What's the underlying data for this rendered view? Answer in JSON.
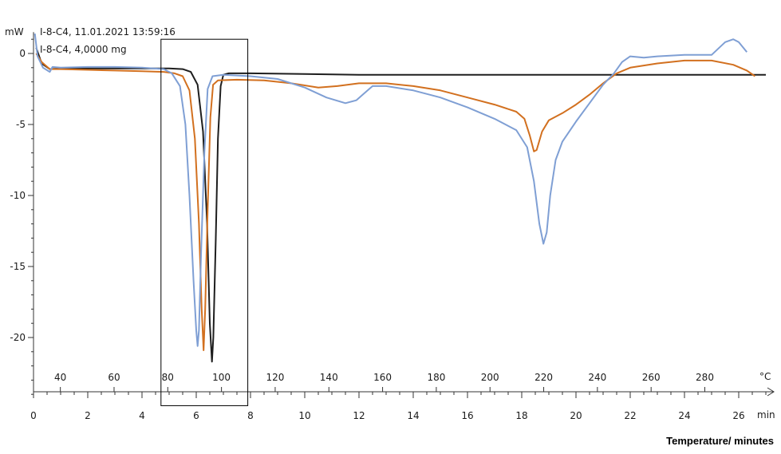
{
  "chart_data": {
    "type": "line",
    "title": "",
    "header_lines": [
      "I-8-C4, 11.01.2021 13:59:16",
      "I-8-C4, 4,0000 mg"
    ],
    "ylabel": "mW",
    "xlabel": "Temperature/ minutes",
    "ylim": [
      -24,
      1.5
    ],
    "xlim_min": [
      0,
      27
    ],
    "xlim_temp": [
      30,
      300
    ],
    "yticks": [
      0,
      -5,
      -10,
      -15,
      -20
    ],
    "yticks_minor_step": 1,
    "temp_ticks": [
      40,
      60,
      80,
      100,
      120,
      140,
      160,
      180,
      200,
      220,
      240,
      260,
      280
    ],
    "temp_unit": "°C",
    "min_ticks": [
      0,
      2,
      4,
      6,
      8,
      10,
      12,
      14,
      16,
      18,
      20,
      22,
      24,
      26
    ],
    "min_unit": "min",
    "grid": false,
    "highlight_box": {
      "x0": 4.7,
      "x1": 7.9,
      "y0": 1.0,
      "y1": -24.8
    },
    "series": [
      {
        "color": "#1e1e1e",
        "points": [
          [
            0.1,
            0.4
          ],
          [
            0.3,
            -0.7
          ],
          [
            0.6,
            -1.1
          ],
          [
            1,
            -1.05
          ],
          [
            2,
            -1.05
          ],
          [
            3,
            -1.05
          ],
          [
            4,
            -1.05
          ],
          [
            5,
            -1.05
          ],
          [
            5.5,
            -1.1
          ],
          [
            5.8,
            -1.3
          ],
          [
            6.05,
            -2.2
          ],
          [
            6.25,
            -5.5
          ],
          [
            6.4,
            -12
          ],
          [
            6.5,
            -19
          ],
          [
            6.58,
            -21.7
          ],
          [
            6.63,
            -20
          ],
          [
            6.72,
            -13
          ],
          [
            6.8,
            -6
          ],
          [
            6.9,
            -2.3
          ],
          [
            7.0,
            -1.5
          ],
          [
            7.2,
            -1.4
          ],
          [
            8,
            -1.4
          ],
          [
            10,
            -1.45
          ],
          [
            12,
            -1.5
          ],
          [
            14,
            -1.5
          ],
          [
            16,
            -1.5
          ],
          [
            18,
            -1.5
          ],
          [
            20,
            -1.5
          ],
          [
            22,
            -1.5
          ],
          [
            24,
            -1.5
          ],
          [
            26,
            -1.5
          ],
          [
            27,
            -1.5
          ]
        ]
      },
      {
        "color": "#d2701f",
        "points": [
          [
            0.1,
            0.0
          ],
          [
            0.3,
            -0.6
          ],
          [
            0.6,
            -1.1
          ],
          [
            1,
            -1.1
          ],
          [
            2,
            -1.15
          ],
          [
            3,
            -1.2
          ],
          [
            4,
            -1.25
          ],
          [
            4.8,
            -1.3
          ],
          [
            5.2,
            -1.4
          ],
          [
            5.5,
            -1.6
          ],
          [
            5.75,
            -2.6
          ],
          [
            5.95,
            -6
          ],
          [
            6.1,
            -12
          ],
          [
            6.2,
            -18
          ],
          [
            6.27,
            -20.9
          ],
          [
            6.33,
            -18
          ],
          [
            6.42,
            -11
          ],
          [
            6.52,
            -4.5
          ],
          [
            6.62,
            -2.2
          ],
          [
            6.8,
            -1.9
          ],
          [
            7.5,
            -1.85
          ],
          [
            8.5,
            -1.9
          ],
          [
            9.5,
            -2.1
          ],
          [
            10.5,
            -2.4
          ],
          [
            11.2,
            -2.3
          ],
          [
            12,
            -2.1
          ],
          [
            13,
            -2.1
          ],
          [
            14,
            -2.3
          ],
          [
            15,
            -2.6
          ],
          [
            16,
            -3.1
          ],
          [
            17,
            -3.6
          ],
          [
            17.8,
            -4.1
          ],
          [
            18.1,
            -4.6
          ],
          [
            18.3,
            -5.8
          ],
          [
            18.45,
            -6.9
          ],
          [
            18.55,
            -6.8
          ],
          [
            18.75,
            -5.5
          ],
          [
            19,
            -4.7
          ],
          [
            19.5,
            -4.2
          ],
          [
            20,
            -3.6
          ],
          [
            20.5,
            -2.9
          ],
          [
            21,
            -2.1
          ],
          [
            21.5,
            -1.4
          ],
          [
            22,
            -1.0
          ],
          [
            23,
            -0.7
          ],
          [
            24,
            -0.5
          ],
          [
            25,
            -0.5
          ],
          [
            25.8,
            -0.8
          ],
          [
            26.3,
            -1.2
          ],
          [
            26.6,
            -1.6
          ]
        ]
      },
      {
        "color": "#7f9fd4",
        "points": [
          [
            0.05,
            1.4
          ],
          [
            0.15,
            -0.2
          ],
          [
            0.35,
            -1.0
          ],
          [
            0.6,
            -1.3
          ],
          [
            0.7,
            -0.95
          ],
          [
            1,
            -1.0
          ],
          [
            2,
            -0.95
          ],
          [
            3,
            -0.95
          ],
          [
            4,
            -1.0
          ],
          [
            4.8,
            -1.1
          ],
          [
            5.1,
            -1.4
          ],
          [
            5.4,
            -2.3
          ],
          [
            5.6,
            -5
          ],
          [
            5.75,
            -10
          ],
          [
            5.9,
            -16
          ],
          [
            6.0,
            -19.5
          ],
          [
            6.05,
            -20.6
          ],
          [
            6.1,
            -19.5
          ],
          [
            6.18,
            -14
          ],
          [
            6.3,
            -7
          ],
          [
            6.42,
            -2.5
          ],
          [
            6.6,
            -1.6
          ],
          [
            7,
            -1.5
          ],
          [
            8,
            -1.6
          ],
          [
            9,
            -1.8
          ],
          [
            10,
            -2.4
          ],
          [
            10.8,
            -3.1
          ],
          [
            11.5,
            -3.5
          ],
          [
            11.9,
            -3.3
          ],
          [
            12.2,
            -2.8
          ],
          [
            12.5,
            -2.3
          ],
          [
            13,
            -2.3
          ],
          [
            14,
            -2.6
          ],
          [
            15,
            -3.1
          ],
          [
            16,
            -3.8
          ],
          [
            17,
            -4.6
          ],
          [
            17.8,
            -5.4
          ],
          [
            18.2,
            -6.6
          ],
          [
            18.45,
            -9
          ],
          [
            18.65,
            -12
          ],
          [
            18.8,
            -13.4
          ],
          [
            18.92,
            -12.6
          ],
          [
            19.05,
            -10
          ],
          [
            19.25,
            -7.5
          ],
          [
            19.5,
            -6.2
          ],
          [
            20,
            -4.8
          ],
          [
            20.5,
            -3.5
          ],
          [
            21,
            -2.2
          ],
          [
            21.4,
            -1.4
          ],
          [
            21.7,
            -0.6
          ],
          [
            22,
            -0.2
          ],
          [
            22.5,
            -0.3
          ],
          [
            23,
            -0.2
          ],
          [
            24,
            -0.1
          ],
          [
            25,
            -0.1
          ],
          [
            25.5,
            0.8
          ],
          [
            25.8,
            1.0
          ],
          [
            26,
            0.8
          ],
          [
            26.3,
            0.1
          ]
        ]
      }
    ]
  }
}
